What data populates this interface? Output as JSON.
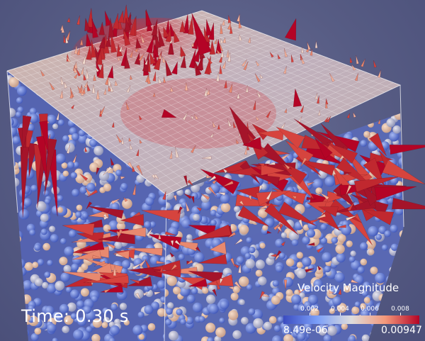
{
  "time_label": "Time: 0.30 s",
  "legend": {
    "title": "Velocity Magnitude",
    "min_label": "8.49e-06",
    "max_label": "0.00947",
    "ticks": [
      "0.002",
      "0.004",
      "0.006",
      "0.008"
    ],
    "colors": [
      "#3b4cc0",
      "#7b9ff9",
      "#dddcdc",
      "#f4987a",
      "#b40426"
    ]
  }
}
